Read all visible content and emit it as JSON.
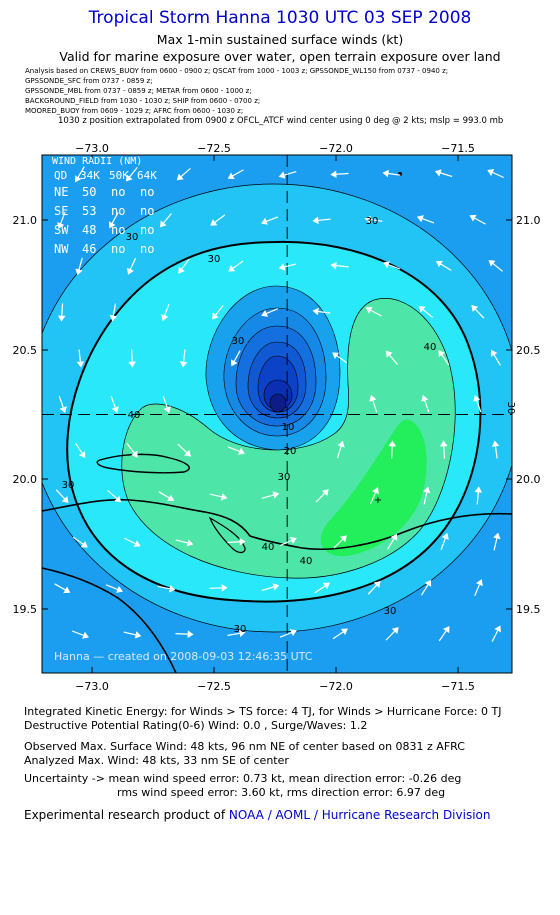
{
  "header": {
    "title": "Tropical Storm Hanna 1030 UTC 03 SEP 2008",
    "subtitle1": "Max 1-min sustained surface winds (kt)",
    "subtitle2": "Valid for marine exposure over water, open terrain exposure over land"
  },
  "sources": [
    "Analysis based on  CREWS_BUOY from 0600 - 0900 z;  QSCAT from 1000 - 1003 z;  GPSSONDE_WL150 from 0737 - 0940 z;",
    "GPSSONDE_SFC from 0737 - 0859 z;",
    "GPSSONDE_MBL from 0737 - 0859 z;  METAR from 0600 - 1000 z;",
    "BACKGROUND_FIELD from 1030 - 1030 z;  SHIP from 0600 - 0700 z;",
    "MOORED_BUOY from 0609 - 1029 z;  AFRC from 0600 - 1030 z;"
  ],
  "extrapolation_note": "1030 z position extrapolated from 0900 z OFCL_ATCF wind center using 0 deg @ 2 kts; mslp = 993.0 mb",
  "map": {
    "lon_ticks": [
      -73.0,
      -72.5,
      -72.0,
      -71.5
    ],
    "lon_labels": [
      "−73.0",
      "−72.5",
      "−72.0",
      "−71.5"
    ],
    "lat_ticks": [
      21.0,
      20.5,
      20.0,
      19.5
    ],
    "lat_labels": [
      "21.0",
      "20.5",
      "20.0",
      "19.5"
    ],
    "center": {
      "lon": -72.2,
      "lat": 20.25
    },
    "contour_labels": [
      "30",
      "30",
      "30",
      "30",
      "30",
      "40",
      "40",
      "40",
      "40",
      "20",
      "10",
      "30",
      "30",
      "30",
      "30"
    ],
    "wind_radii": {
      "title": "WIND RADII (NM)",
      "header": [
        "QD",
        "34K",
        "50K",
        "64K"
      ],
      "rows": [
        [
          "NE",
          "50",
          "no",
          "no"
        ],
        [
          "SE",
          "53",
          "no",
          "no"
        ],
        [
          "SW",
          "48",
          "no",
          "no"
        ],
        [
          "NW",
          "46",
          "no",
          "no"
        ]
      ]
    },
    "credit": "Hanna — created on 2008-09-03 12:46:35 UTC",
    "colors": {
      "background": "#1c9ef0",
      "band30": "#22c4f5",
      "band40": "#28e8fa",
      "band45": "#4ee6a8",
      "band48": "#23ef5d",
      "eye_levels": [
        "#18a2ee",
        "#1688e6",
        "#1470de",
        "#1059d3",
        "#0c42c6",
        "#0a2fb3",
        "#0d1c86"
      ]
    }
  },
  "info": {
    "ike": "Integrated Kinetic Energy:  for Winds > TS force: 4 TJ,  for Winds > Hurricane Force: 0 TJ",
    "dpr": "Destructive Potential Rating(0-6)   Wind: 0.0 , Surge/Waves: 1.2",
    "observed": "Observed Max. Surface Wind: 48 kts, 96 nm NE of center based on 0831 z AFRC",
    "analyzed": "Analyzed Max. Wind: 48 kts, 33 nm SE of center",
    "uncertainty1": "Uncertainty -> mean wind speed error: 0.73 kt,   mean direction error:  -0.26 deg",
    "uncertainty2": "rms wind speed error: 3.60 kt,   rms direction error: 6.97 deg",
    "footer_prefix": "Experimental research product of ",
    "footer_link": "NOAA / AOML / Hurricane Research Division"
  }
}
